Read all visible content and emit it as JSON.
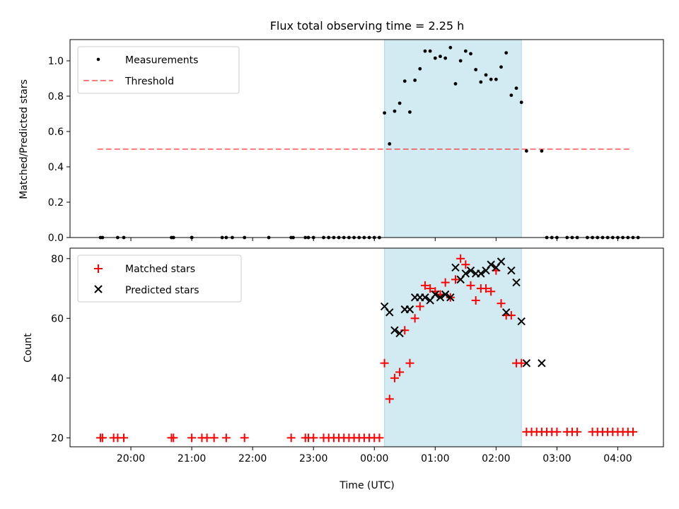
{
  "figure": {
    "title": "Flux total observing time = 2.25 h"
  },
  "colors": {
    "shade": "#add8e6",
    "measure": "#000000",
    "threshold": "#ff0000",
    "matched": "#ff0000",
    "predicted": "#000000"
  },
  "chart_data": [
    {
      "type": "scatter",
      "title": "Flux total observing time = 2.25 h",
      "xlabel": "",
      "ylabel": "Matched/Predicted stars",
      "xlim": [
        "19:00",
        "04:45"
      ],
      "ylim": [
        0,
        1.12
      ],
      "yticks": [
        "0.0",
        "0.2",
        "0.4",
        "0.6",
        "0.8",
        "1.0"
      ],
      "shaded_region": [
        "00:10",
        "02:25"
      ],
      "legend_position": "top-left",
      "series": [
        {
          "name": "Measurements",
          "kind": "points",
          "x": [
            "19:30",
            "19:32",
            "19:47",
            "19:53",
            "20:40",
            "20:42",
            "21:00",
            "21:00",
            "21:30",
            "21:34",
            "21:40",
            "21:52",
            "22:16",
            "22:38",
            "22:40",
            "22:52",
            "22:55",
            "23:00",
            "23:10",
            "23:15",
            "23:20",
            "23:25",
            "23:30",
            "23:35",
            "23:40",
            "23:45",
            "23:50",
            "23:55",
            "00:00",
            "00:05",
            "00:10",
            "00:15",
            "00:20",
            "00:25",
            "00:30",
            "00:35",
            "00:40",
            "00:45",
            "00:50",
            "00:55",
            "01:00",
            "01:05",
            "01:10",
            "01:15",
            "01:20",
            "01:25",
            "01:30",
            "01:35",
            "01:40",
            "01:45",
            "01:50",
            "01:55",
            "02:00",
            "02:05",
            "02:10",
            "02:15",
            "02:20",
            "02:25",
            "02:30",
            "02:45",
            "02:50",
            "02:55",
            "03:00",
            "03:10",
            "03:15",
            "03:20",
            "03:30",
            "03:35",
            "03:40",
            "03:45",
            "03:50",
            "03:55",
            "04:00",
            "04:05",
            "04:10",
            "04:15",
            "04:20"
          ],
          "y": [
            0,
            0,
            0,
            0,
            0,
            0,
            0,
            0,
            0,
            0,
            0,
            0,
            0,
            0,
            0,
            0,
            0,
            0,
            0,
            0,
            0,
            0,
            0,
            0,
            0,
            0,
            0,
            0,
            0,
            0,
            0.705,
            0.53,
            0.715,
            0.76,
            0.885,
            0.71,
            0.89,
            0.955,
            1.055,
            1.055,
            1.015,
            1.025,
            1.015,
            1.075,
            0.87,
            1.0,
            1.055,
            1.04,
            0.95,
            0.88,
            0.92,
            0.895,
            0.895,
            0.965,
            1.045,
            0.805,
            0.845,
            0.765,
            0.49,
            0.49,
            0,
            0,
            0,
            0,
            0,
            0,
            0,
            0,
            0,
            0,
            0,
            0,
            0,
            0,
            0,
            0,
            0
          ]
        },
        {
          "name": "Threshold",
          "kind": "dashed-line",
          "x": [
            "19:27",
            "04:12"
          ],
          "y": [
            0.5,
            0.5
          ]
        }
      ]
    },
    {
      "type": "scatter",
      "xlabel": "Time (UTC)",
      "ylabel": "Count",
      "xlim": [
        "19:00",
        "04:45"
      ],
      "ylim": [
        17,
        83.5
      ],
      "yticks": [
        "20",
        "40",
        "60",
        "80"
      ],
      "xticks": [
        "20:00",
        "21:00",
        "22:00",
        "23:00",
        "00:00",
        "01:00",
        "02:00",
        "03:00",
        "04:00"
      ],
      "shaded_region": [
        "00:10",
        "02:25"
      ],
      "legend_position": "top-left",
      "series": [
        {
          "name": "Matched stars",
          "marker": "plus",
          "x": [
            "19:30",
            "19:32",
            "19:43",
            "19:47",
            "19:53",
            "20:40",
            "20:42",
            "21:00",
            "21:10",
            "21:15",
            "21:22",
            "21:34",
            "21:52",
            "22:38",
            "22:52",
            "22:55",
            "23:00",
            "23:10",
            "23:15",
            "23:20",
            "23:25",
            "23:30",
            "23:35",
            "23:40",
            "23:45",
            "23:50",
            "23:55",
            "00:00",
            "00:05",
            "00:10",
            "00:15",
            "00:20",
            "00:25",
            "00:30",
            "00:35",
            "00:40",
            "00:45",
            "00:50",
            "00:55",
            "01:00",
            "01:05",
            "01:10",
            "01:15",
            "01:20",
            "01:25",
            "01:30",
            "01:35",
            "01:40",
            "01:45",
            "01:50",
            "01:55",
            "02:00",
            "02:05",
            "02:10",
            "02:15",
            "02:20",
            "02:25",
            "02:30",
            "02:35",
            "02:40",
            "02:45",
            "02:50",
            "02:55",
            "03:00",
            "03:10",
            "03:15",
            "03:20",
            "03:35",
            "03:40",
            "03:45",
            "03:50",
            "03:55",
            "04:00",
            "04:05",
            "04:10",
            "04:15"
          ],
          "y": [
            20,
            20,
            20,
            20,
            20,
            20,
            20,
            20,
            20,
            20,
            20,
            20,
            20,
            20,
            20,
            20,
            20,
            20,
            20,
            20,
            20,
            20,
            20,
            20,
            20,
            20,
            20,
            20,
            20,
            45,
            33,
            40,
            42,
            56,
            45,
            60,
            64,
            71,
            70,
            69,
            68,
            72,
            67,
            73,
            80,
            78,
            71,
            66,
            70,
            70,
            69,
            76,
            65,
            61,
            61,
            45,
            45,
            22,
            22,
            22,
            22,
            22,
            22,
            22,
            22,
            22,
            22,
            22,
            22,
            22,
            22,
            22,
            22,
            22,
            22,
            22
          ]
        },
        {
          "name": "Predicted stars",
          "marker": "cross",
          "x": [
            "00:10",
            "00:15",
            "00:20",
            "00:25",
            "00:30",
            "00:35",
            "00:40",
            "00:45",
            "00:50",
            "00:55",
            "01:00",
            "01:05",
            "01:10",
            "01:15",
            "01:20",
            "01:25",
            "01:30",
            "01:35",
            "01:40",
            "01:45",
            "01:50",
            "01:55",
            "02:00",
            "02:05",
            "02:10",
            "02:15",
            "02:20",
            "02:25",
            "02:30",
            "02:45"
          ],
          "y": [
            64,
            62,
            56,
            55,
            63,
            63,
            67,
            67,
            67,
            66,
            68,
            67,
            68,
            67,
            77,
            73,
            75,
            76,
            75,
            75,
            76,
            78,
            77,
            79,
            62,
            76,
            72,
            59,
            45,
            45
          ]
        }
      ]
    }
  ]
}
